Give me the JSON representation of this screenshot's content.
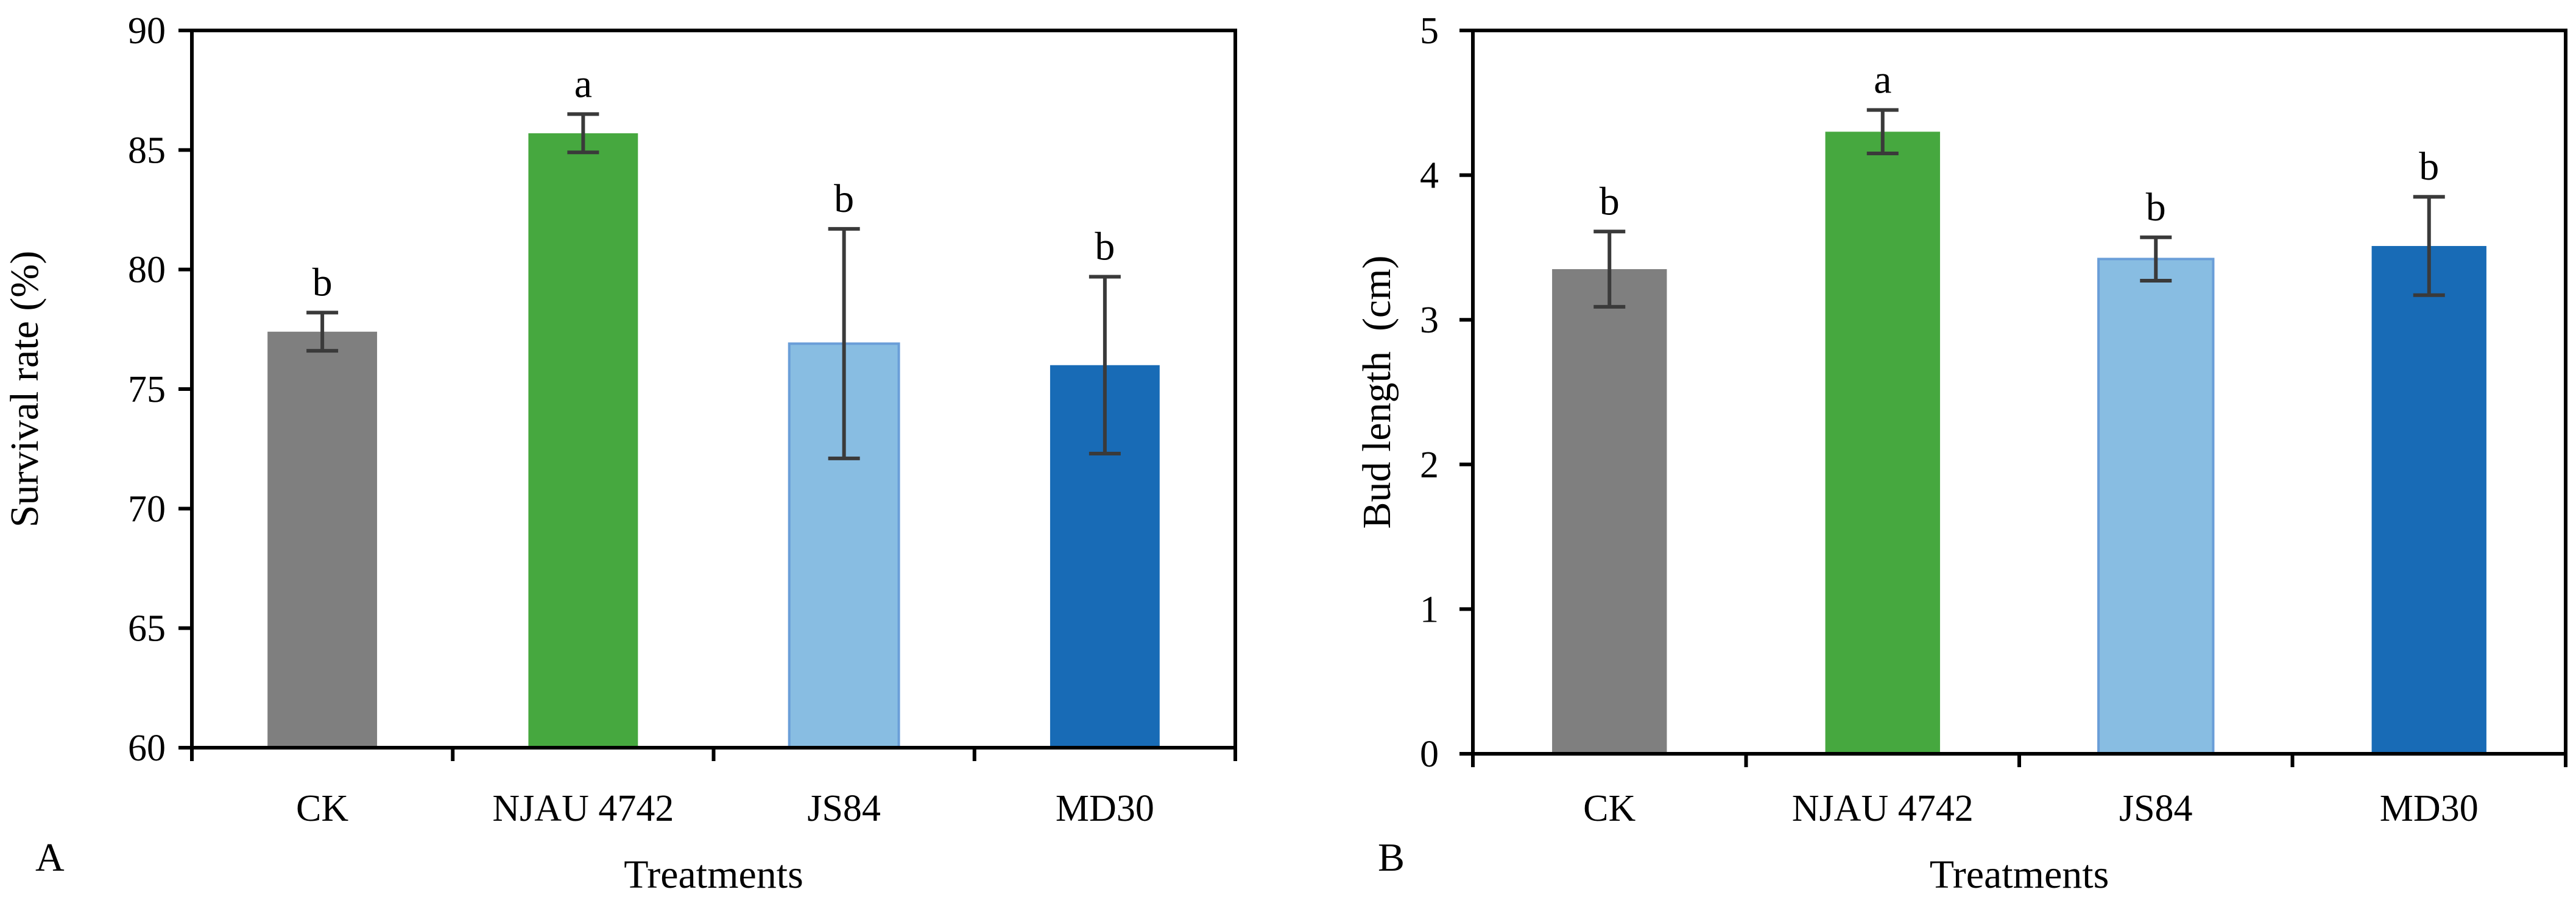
{
  "chart_data": [
    {
      "type": "bar",
      "panel_label": "A",
      "title": "",
      "xlabel": "Treatments",
      "ylabel": "Survival rate (%)",
      "ylim": [
        60,
        90
      ],
      "yticks": [
        60,
        65,
        70,
        75,
        80,
        85,
        90
      ],
      "ytick_labels": [
        "60",
        "65",
        "70",
        "75",
        "80",
        "85",
        "90"
      ],
      "grid": false,
      "categories": [
        "CK",
        "NJAU 4742",
        "JS84",
        "MD30"
      ],
      "values": [
        77.4,
        85.7,
        76.9,
        76.0
      ],
      "errors": [
        0.8,
        0.8,
        4.8,
        3.7
      ],
      "letters": [
        "b",
        "a",
        "b",
        "b"
      ],
      "colors": [
        "#7f7f7f",
        "#46a83f",
        "#88bde2",
        "#186bb6"
      ]
    },
    {
      "type": "bar",
      "panel_label": "B",
      "title": "",
      "xlabel": "Treatments",
      "ylabel": "Bud length  (cm)",
      "ylim": [
        0,
        5
      ],
      "yticks": [
        0,
        1,
        2,
        3,
        4,
        5
      ],
      "ytick_labels": [
        "0",
        "1",
        "2",
        "3",
        "4",
        "5"
      ],
      "grid": false,
      "categories": [
        "CK",
        "NJAU 4742",
        "JS84",
        "MD30"
      ],
      "values": [
        3.35,
        4.3,
        3.42,
        3.51
      ],
      "errors": [
        0.26,
        0.15,
        0.15,
        0.34
      ],
      "letters": [
        "b",
        "a",
        "b",
        "b"
      ],
      "colors": [
        "#7f7f7f",
        "#46a83f",
        "#88bde2",
        "#186bb6"
      ]
    }
  ]
}
